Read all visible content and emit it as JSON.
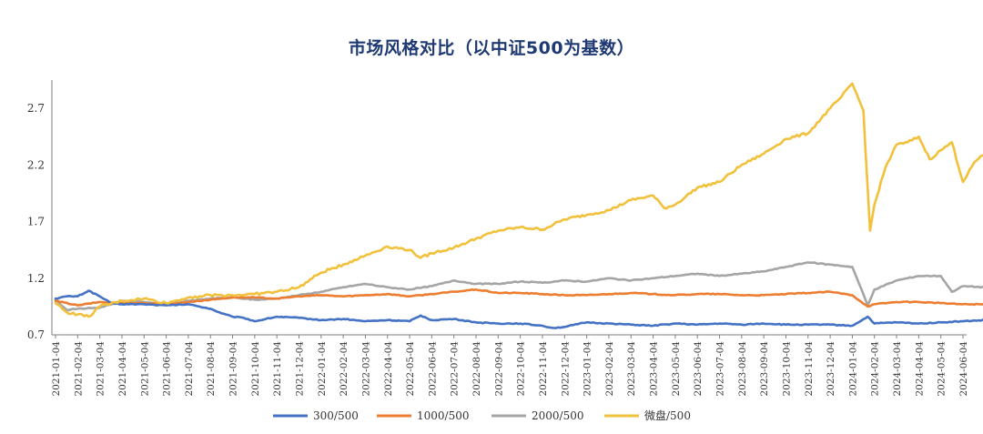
{
  "chart_data": {
    "type": "line",
    "title": "市场风格对比（以中证500为基数）",
    "xlabel": "",
    "ylabel": "",
    "ylim": [
      0.7,
      2.95
    ],
    "yticks": [
      "0.7",
      "1.2",
      "1.7",
      "2.2",
      "2.7"
    ],
    "categories": [
      "2021-01-04",
      "2021-02-04",
      "2021-03-04",
      "2021-04-04",
      "2021-05-04",
      "2021-06-04",
      "2021-07-04",
      "2021-08-04",
      "2021-09-04",
      "2021-10-04",
      "2021-11-04",
      "2021-12-04",
      "2022-01-04",
      "2022-02-04",
      "2022-03-04",
      "2022-04-04",
      "2022-05-04",
      "2022-06-04",
      "2022-07-04",
      "2022-08-04",
      "2022-09-04",
      "2022-10-04",
      "2022-11-04",
      "2022-12-04",
      "2023-01-04",
      "2023-02-04",
      "2023-03-04",
      "2023-04-04",
      "2023-05-04",
      "2023-06-04",
      "2023-07-04",
      "2023-08-04",
      "2023-09-04",
      "2023-10-04",
      "2023-11-04",
      "2023-12-04",
      "2024-01-04",
      "2024-02-04",
      "2024-03-04",
      "2024-04-04",
      "2024-05-04",
      "2024-06-04"
    ],
    "series": [
      {
        "name": "300/500",
        "color": "#4472C4",
        "x": [
          0,
          0.5,
          1,
          1.5,
          2,
          2.5,
          3,
          4,
          5,
          6,
          7,
          7.5,
          8,
          8.5,
          9,
          10,
          11,
          12,
          13,
          14,
          15,
          16,
          16.5,
          17,
          18,
          19,
          20,
          21,
          22,
          22.5,
          23,
          24,
          25,
          26,
          27,
          28,
          29,
          30,
          31,
          32,
          33,
          34,
          35,
          36,
          36.7,
          37,
          38,
          39,
          40,
          41,
          42
        ],
        "values": [
          1.02,
          1.04,
          1.04,
          1.09,
          1.04,
          0.98,
          0.97,
          0.97,
          0.96,
          0.97,
          0.93,
          0.89,
          0.86,
          0.85,
          0.82,
          0.86,
          0.85,
          0.83,
          0.84,
          0.82,
          0.83,
          0.82,
          0.87,
          0.83,
          0.84,
          0.81,
          0.8,
          0.8,
          0.78,
          0.76,
          0.77,
          0.81,
          0.8,
          0.79,
          0.78,
          0.8,
          0.79,
          0.8,
          0.79,
          0.8,
          0.79,
          0.79,
          0.79,
          0.78,
          0.86,
          0.8,
          0.81,
          0.8,
          0.81,
          0.82,
          0.83
        ]
      },
      {
        "name": "1000/500",
        "color": "#ED7D31",
        "x": [
          0,
          1,
          2,
          3,
          4,
          5,
          6,
          7,
          8,
          9,
          10,
          11,
          12,
          13,
          14,
          15,
          16,
          17,
          18,
          19,
          20,
          21,
          22,
          23,
          24,
          25,
          26,
          27,
          28,
          29,
          30,
          31,
          32,
          33,
          34,
          35,
          36,
          36.7,
          37,
          38,
          39,
          40,
          41,
          42
        ],
        "values": [
          1.0,
          0.96,
          0.99,
          0.98,
          0.98,
          0.97,
          0.99,
          1.01,
          1.03,
          1.03,
          1.02,
          1.04,
          1.05,
          1.04,
          1.05,
          1.06,
          1.04,
          1.06,
          1.08,
          1.1,
          1.07,
          1.07,
          1.06,
          1.05,
          1.05,
          1.06,
          1.07,
          1.06,
          1.05,
          1.06,
          1.06,
          1.05,
          1.05,
          1.06,
          1.07,
          1.08,
          1.05,
          0.95,
          0.97,
          0.99,
          0.99,
          0.98,
          0.97,
          0.97
        ]
      },
      {
        "name": "2000/500",
        "color": "#A5A5A5",
        "x": [
          0,
          0.5,
          1,
          2,
          3,
          4,
          5,
          6,
          7,
          8,
          9,
          10,
          11,
          12,
          13,
          14,
          15,
          16,
          17,
          18,
          19,
          20,
          21,
          22,
          23,
          24,
          25,
          26,
          27,
          28,
          29,
          30,
          31,
          32,
          33,
          34,
          35,
          36,
          36.7,
          37,
          38,
          39,
          40,
          40.5,
          41,
          42
        ],
        "values": [
          1.01,
          0.92,
          0.93,
          0.94,
          1.0,
          0.99,
          0.97,
          1.0,
          1.02,
          1.03,
          1.01,
          1.02,
          1.05,
          1.08,
          1.12,
          1.15,
          1.12,
          1.1,
          1.13,
          1.18,
          1.15,
          1.15,
          1.17,
          1.16,
          1.18,
          1.17,
          1.2,
          1.18,
          1.2,
          1.22,
          1.24,
          1.22,
          1.24,
          1.26,
          1.3,
          1.34,
          1.32,
          1.3,
          0.96,
          1.1,
          1.18,
          1.22,
          1.22,
          1.08,
          1.13,
          1.12
        ]
      },
      {
        "name": "微盘/500",
        "color": "#F2C13C",
        "x": [
          0,
          0.5,
          1,
          1.5,
          2,
          3,
          4,
          5,
          6,
          7,
          8,
          9,
          10,
          11,
          12,
          13,
          14,
          15,
          16,
          16.5,
          17,
          18,
          19,
          20,
          21,
          22,
          23,
          24,
          25,
          26,
          27,
          27.5,
          28,
          29,
          30,
          31,
          32,
          33,
          34,
          35,
          35.5,
          36,
          36.5,
          36.8,
          37,
          37.5,
          38,
          38.5,
          39,
          39.5,
          40,
          40.5,
          41,
          41.5,
          42
        ],
        "values": [
          0.98,
          0.9,
          0.88,
          0.86,
          0.95,
          1.0,
          1.02,
          0.98,
          1.03,
          1.05,
          1.05,
          1.06,
          1.08,
          1.12,
          1.25,
          1.32,
          1.4,
          1.48,
          1.45,
          1.38,
          1.42,
          1.47,
          1.55,
          1.62,
          1.65,
          1.63,
          1.72,
          1.76,
          1.8,
          1.89,
          1.93,
          1.82,
          1.85,
          2.0,
          2.05,
          2.2,
          2.3,
          2.43,
          2.48,
          2.7,
          2.8,
          2.92,
          2.68,
          1.62,
          1.85,
          2.18,
          2.38,
          2.4,
          2.45,
          2.25,
          2.33,
          2.4,
          2.05,
          2.22,
          2.3
        ]
      }
    ]
  }
}
